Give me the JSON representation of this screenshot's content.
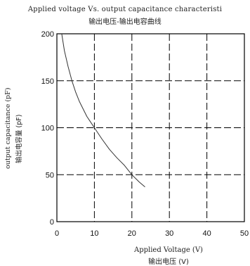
{
  "chart_data": {
    "type": "line",
    "title": "Applied voltage Vs. output capacitance characteristi",
    "subtitle": "输出电压-输出电容曲线",
    "xlabel": "Applied Voltage (V)",
    "xlabel_cn": "输出电压 (V)",
    "ylabel": "output capacitance (pF)",
    "ylabel_cn": "输出电容量 (pF)",
    "xlim": [
      0,
      50
    ],
    "ylim": [
      0,
      200
    ],
    "xticks": [
      0,
      10,
      20,
      30,
      40,
      50
    ],
    "yticks": [
      0,
      50,
      100,
      150,
      200
    ],
    "grid": true,
    "grid_style": "dashed",
    "colors": {
      "line": "#333333",
      "axis": "#000000",
      "grid": "#000000"
    },
    "series": [
      {
        "x": [
          1.3,
          2,
          3,
          4,
          5,
          6,
          8,
          10,
          12,
          14,
          16,
          18,
          20,
          22,
          23.5
        ],
        "values": [
          200,
          182,
          165,
          150,
          138,
          128,
          112,
          100,
          88,
          77,
          68,
          60,
          50,
          42,
          37
        ]
      }
    ]
  }
}
